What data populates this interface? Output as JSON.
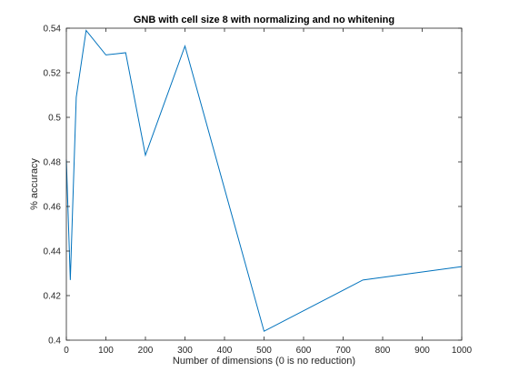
{
  "chart_data": {
    "type": "line",
    "title": "GNB with cell size 8 with normalizing and no whitening",
    "xlabel": "Number of dimensions (0 is no reduction)",
    "ylabel": "% accuracy",
    "xlim": [
      0,
      1000
    ],
    "ylim": [
      0.4,
      0.54
    ],
    "xticks": [
      0,
      100,
      200,
      300,
      400,
      500,
      600,
      700,
      800,
      900,
      1000
    ],
    "yticks": [
      0.4,
      0.42,
      0.44,
      0.46,
      0.48,
      0.5,
      0.52,
      0.54
    ],
    "ytick_labels": [
      "0.4",
      "0.42",
      "0.44",
      "0.46",
      "0.48",
      "0.5",
      "0.52",
      "0.54"
    ],
    "grid": false,
    "series": [
      {
        "color": "#0072BD",
        "x": [
          0,
          10,
          25,
          50,
          100,
          150,
          200,
          300,
          500,
          750,
          1000
        ],
        "y": [
          0.481,
          0.427,
          0.509,
          0.539,
          0.528,
          0.529,
          0.483,
          0.532,
          0.404,
          0.427,
          0.433
        ]
      }
    ]
  }
}
